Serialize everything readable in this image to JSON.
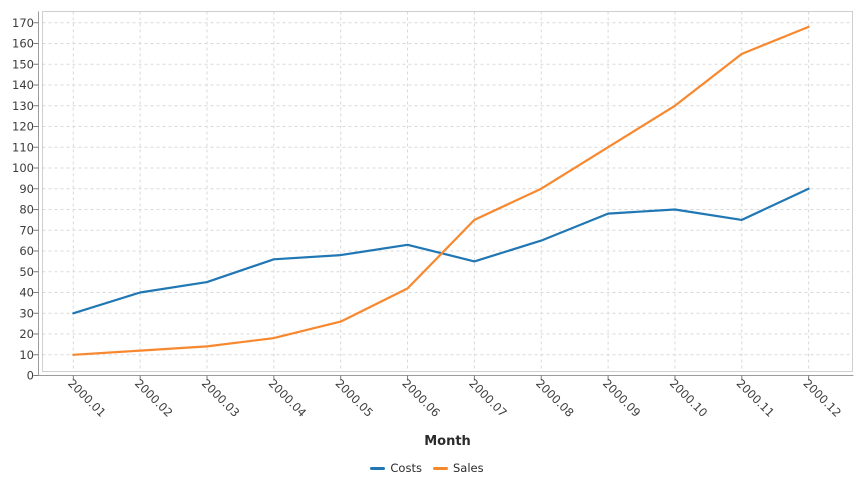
{
  "chart_data": {
    "type": "line",
    "title": "",
    "xlabel": "Month",
    "ylabel": "",
    "categories": [
      "2000.01",
      "2000.02",
      "2000.03",
      "2000.04",
      "2000.05",
      "2000.06",
      "2000.07",
      "2000.08",
      "2000.09",
      "2000.10",
      "2000.11",
      "2000.12"
    ],
    "series": [
      {
        "name": "Costs",
        "color": "#2077b4",
        "values": [
          30,
          40,
          45,
          56,
          58,
          63,
          55,
          65,
          78,
          80,
          75,
          90
        ]
      },
      {
        "name": "Sales",
        "color": "#f8882e",
        "values": [
          10,
          12,
          14,
          18,
          26,
          42,
          75,
          90,
          110,
          130,
          155,
          168
        ]
      }
    ],
    "ylim": [
      0,
      170
    ],
    "ytick_step": 10,
    "grid": true,
    "grid_style": "dashed",
    "legend_position": "bottom-center",
    "x_tick_rotation_deg": 45
  },
  "colors": {
    "background": "#ffffff",
    "grid": "#d9d9d9",
    "plot_border": "#cfcfcf",
    "axis_line": "#9b9b9b",
    "tick_mark": "#7a7a7a",
    "tick_label": "#3c3c3c"
  }
}
